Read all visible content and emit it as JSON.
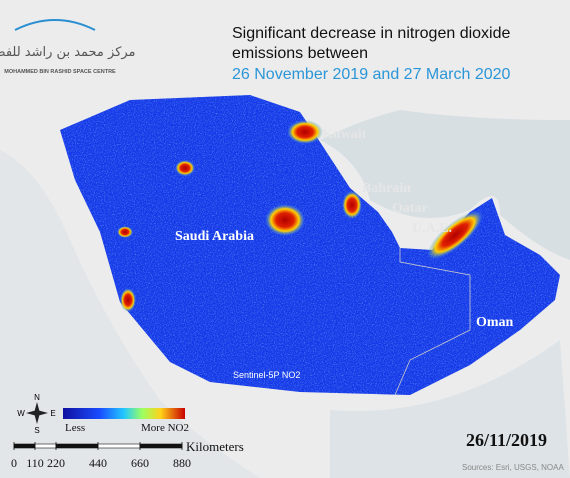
{
  "logo": {
    "arabic": "مركز محمد بن راشد للفضاء",
    "english": "MOHAMMED BIN RASHID SPACE CENTRE"
  },
  "header": {
    "title_line1": "Significant decrease in nitrogen dioxide",
    "title_line2": "emissions between",
    "subtitle": "26 November 2019 and 27 March 2020"
  },
  "places": {
    "kuwait": "Kuwait",
    "bahrain": "Bahrain",
    "qatar": "Qatar",
    "uae": "U.A.E.",
    "saudi": "Saudi Arabia",
    "oman": "Oman"
  },
  "product": "Sentinel-5P NO2",
  "legend": {
    "low": "Less",
    "high": "More NO2"
  },
  "compass": {
    "n": "N",
    "s": "S",
    "e": "E",
    "w": "W"
  },
  "scale": {
    "unit": "Kilometers",
    "ticks": [
      0,
      110,
      220,
      440,
      660,
      880
    ]
  },
  "date": "26/11/2019",
  "source": "Sources: Esri, USGS, NOAA"
}
